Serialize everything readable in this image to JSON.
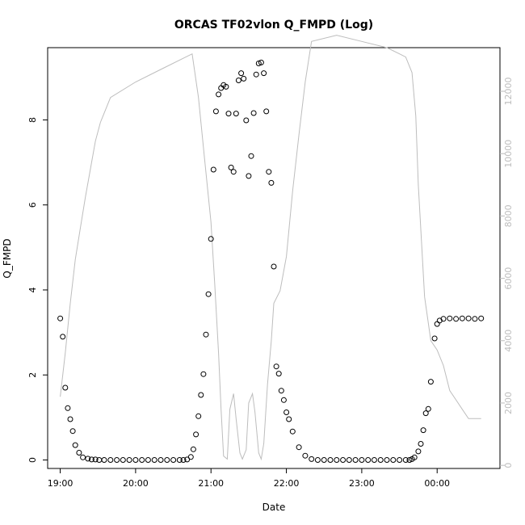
{
  "chart_data": {
    "type": "scatter",
    "title": "ORCAS TF02vlon Q_FMPD (Log)",
    "xlabel": "Date",
    "ylabel": "Q_FMPD",
    "x_ticks": [
      "19:00",
      "20:00",
      "21:00",
      "22:00",
      "23:00",
      "00:00"
    ],
    "y_ticks": [
      "0",
      "2",
      "4",
      "6",
      "8"
    ],
    "y2_ticks": [
      "0",
      "2000",
      "4000",
      "6000",
      "8000",
      "10000",
      "12000"
    ],
    "xlim": [
      "18:50",
      "00:50"
    ],
    "ylim": [
      -0.2,
      9.7
    ],
    "y2lim": [
      -100,
      13400
    ],
    "series": [
      {
        "style": "points",
        "color": "#000000",
        "x": [
          "19:00",
          "19:02",
          "19:04",
          "19:06",
          "19:08",
          "19:10",
          "19:12",
          "19:15",
          "19:18",
          "19:22",
          "19:25",
          "19:28",
          "19:31",
          "19:35",
          "19:40",
          "19:45",
          "19:50",
          "19:55",
          "20:00",
          "20:05",
          "20:10",
          "20:15",
          "20:20",
          "20:25",
          "20:30",
          "20:35",
          "20:38",
          "20:41",
          "20:44",
          "20:46",
          "20:48",
          "20:50",
          "20:52",
          "20:54",
          "20:56",
          "20:58",
          "21:00",
          "21:02",
          "21:04",
          "21:06",
          "21:08",
          "21:10",
          "21:12",
          "21:14",
          "21:16",
          "21:18",
          "21:20",
          "21:22",
          "21:24",
          "21:26",
          "21:28",
          "21:30",
          "21:32",
          "21:34",
          "21:36",
          "21:38",
          "21:40",
          "21:42",
          "21:44",
          "21:46",
          "21:48",
          "21:50",
          "21:52",
          "21:54",
          "21:56",
          "21:58",
          "22:00",
          "22:02",
          "22:05",
          "22:10",
          "22:15",
          "22:20",
          "22:25",
          "22:30",
          "22:35",
          "22:40",
          "22:45",
          "22:50",
          "22:55",
          "23:00",
          "23:05",
          "23:10",
          "23:15",
          "23:20",
          "23:25",
          "23:30",
          "23:35",
          "23:38",
          "23:40",
          "23:42",
          "23:45",
          "23:47",
          "23:49",
          "23:51",
          "23:53",
          "23:55",
          "23:58",
          "00:00",
          "00:02",
          "00:05",
          "00:10",
          "00:15",
          "00:20",
          "00:25",
          "00:30",
          "00:35"
        ],
        "y": [
          3.33,
          2.9,
          1.7,
          1.22,
          0.96,
          0.68,
          0.35,
          0.17,
          0.06,
          0.03,
          0.01,
          0.01,
          0.0,
          0.0,
          0.0,
          0.0,
          0.0,
          0.0,
          0.0,
          0.0,
          0.0,
          0.0,
          0.0,
          0.0,
          0.0,
          0.0,
          0.0,
          0.01,
          0.07,
          0.25,
          0.6,
          1.03,
          1.53,
          2.02,
          2.95,
          3.9,
          5.2,
          6.83,
          8.2,
          8.6,
          8.75,
          8.82,
          8.78,
          8.15,
          6.88,
          6.78,
          8.15,
          8.93,
          9.1,
          8.97,
          7.99,
          6.68,
          7.15,
          8.16,
          9.07,
          9.33,
          9.35,
          9.1,
          8.2,
          6.78,
          6.52,
          4.55,
          2.2,
          2.03,
          1.63,
          1.41,
          1.12,
          0.96,
          0.67,
          0.3,
          0.1,
          0.02,
          0.0,
          0.0,
          0.0,
          0.0,
          0.0,
          0.0,
          0.0,
          0.0,
          0.0,
          0.0,
          0.0,
          0.0,
          0.0,
          0.0,
          0.0,
          0.0,
          0.02,
          0.06,
          0.2,
          0.38,
          0.7,
          1.1,
          1.2,
          1.84,
          2.86,
          3.2,
          3.28,
          3.32,
          3.33,
          3.32,
          3.33,
          3.33,
          3.32,
          3.33
        ]
      },
      {
        "style": "line",
        "axis": "right",
        "color": "#bdbdbd",
        "x": [
          "19:00",
          "19:04",
          "19:08",
          "19:12",
          "19:16",
          "19:20",
          "19:24",
          "19:28",
          "19:32",
          "19:40",
          "20:00",
          "20:20",
          "20:40",
          "20:45",
          "20:50",
          "20:55",
          "21:00",
          "21:03",
          "21:06",
          "21:08",
          "21:10",
          "21:13",
          "21:15",
          "21:18",
          "21:20",
          "21:23",
          "21:25",
          "21:28",
          "21:30",
          "21:33",
          "21:35",
          "21:38",
          "21:40",
          "21:42",
          "21:45",
          "21:48",
          "21:50",
          "21:55",
          "22:00",
          "22:05",
          "22:10",
          "22:15",
          "22:20",
          "22:40",
          "23:00",
          "23:20",
          "23:30",
          "23:35",
          "23:38",
          "23:40",
          "23:43",
          "23:45",
          "23:50",
          "23:55",
          "00:00",
          "00:05",
          "00:10",
          "00:15",
          "00:20",
          "00:25",
          "00:35"
        ],
        "y": [
          2200,
          3600,
          5200,
          6600,
          7600,
          8600,
          9500,
          10400,
          11000,
          11800,
          12300,
          12700,
          13100,
          13200,
          11800,
          9800,
          7800,
          5800,
          3600,
          1800,
          300,
          200,
          1800,
          2300,
          1500,
          400,
          200,
          500,
          2000,
          2300,
          1700,
          400,
          200,
          700,
          2600,
          4000,
          5200,
          5600,
          6700,
          8800,
          10600,
          12300,
          13600,
          13800,
          13600,
          13400,
          13200,
          13100,
          12800,
          12600,
          11200,
          9000,
          5400,
          4000,
          3700,
          3200,
          2400,
          2100,
          1800,
          1500,
          1500
        ]
      }
    ]
  }
}
